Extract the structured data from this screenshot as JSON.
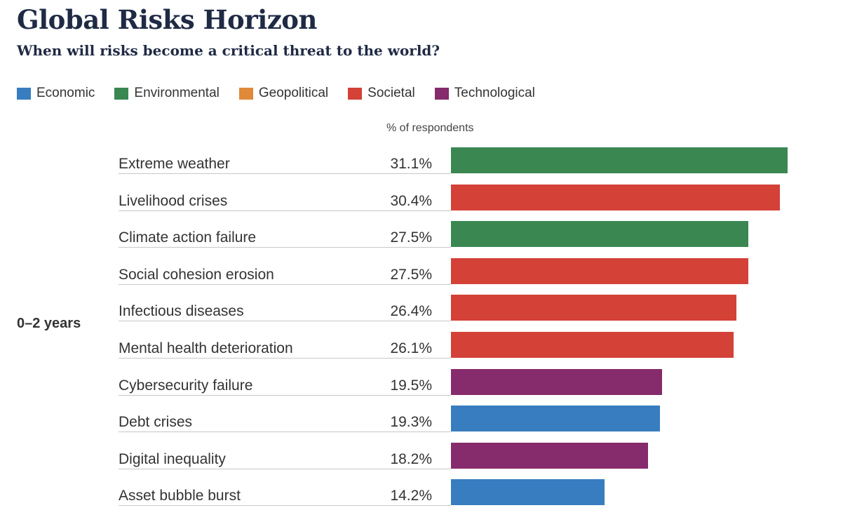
{
  "title": "Global Risks Horizon",
  "subtitle": "When will risks become a critical threat to the world?",
  "legend": [
    {
      "label": "Economic",
      "color": "#377dbf"
    },
    {
      "label": "Environmental",
      "color": "#3a8752"
    },
    {
      "label": "Geopolitical",
      "color": "#e0893a"
    },
    {
      "label": "Societal",
      "color": "#d44137"
    },
    {
      "label": "Technological",
      "color": "#862b6b"
    }
  ],
  "horizon_label": "0–2 years",
  "chart_data": {
    "type": "bar",
    "orientation": "horizontal",
    "unit_label": "% of respondents",
    "categories": [
      "Extreme weather",
      "Livelihood crises",
      "Climate action failure",
      "Social cohesion erosion",
      "Infectious diseases",
      "Mental health deterioration",
      "Cybersecurity failure",
      "Debt crises",
      "Digital inequality",
      "Asset bubble burst"
    ],
    "values": [
      31.1,
      30.4,
      27.5,
      27.5,
      26.4,
      26.1,
      19.5,
      19.3,
      18.2,
      14.2
    ],
    "value_labels": [
      "31.1%",
      "30.4%",
      "27.5%",
      "27.5%",
      "26.4%",
      "26.1%",
      "19.5%",
      "19.3%",
      "18.2%",
      "14.2%"
    ],
    "groups": [
      "Environmental",
      "Societal",
      "Environmental",
      "Societal",
      "Societal",
      "Societal",
      "Technological",
      "Economic",
      "Technological",
      "Economic"
    ],
    "xlim": [
      0,
      31.1
    ]
  }
}
